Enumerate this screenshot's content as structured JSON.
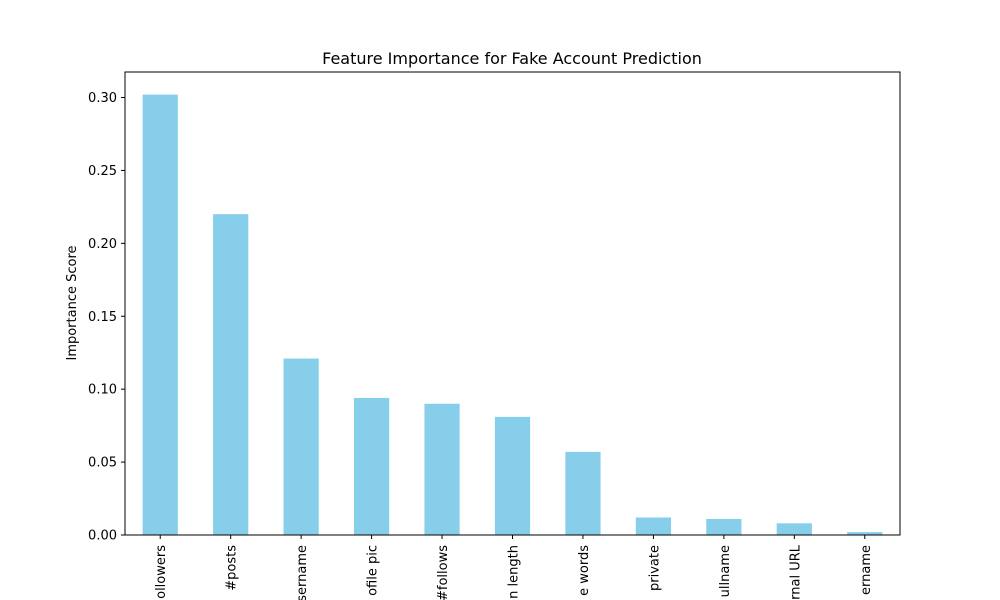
{
  "chart_data": {
    "type": "bar",
    "title": "Feature Importance for Fake Account Prediction",
    "xlabel": "",
    "ylabel": "Importance Score",
    "categories": [
      "ollowers",
      "#posts",
      "sername",
      "ofile pic",
      "#follows",
      "n length",
      "e words",
      "private",
      "ullname",
      "rnal URL",
      "ername"
    ],
    "values": [
      0.302,
      0.22,
      0.121,
      0.094,
      0.09,
      0.081,
      0.057,
      0.012,
      0.011,
      0.008,
      0.002
    ],
    "ylim": [
      0,
      0.3175
    ],
    "yticks": [
      0.0,
      0.05,
      0.1,
      0.15,
      0.2,
      0.25,
      0.3
    ],
    "ytick_labels": [
      "0.00",
      "0.05",
      "0.10",
      "0.15",
      "0.20",
      "0.25",
      "0.30"
    ],
    "bar_color": "#87ceeb",
    "grid": false,
    "legend": "none"
  }
}
